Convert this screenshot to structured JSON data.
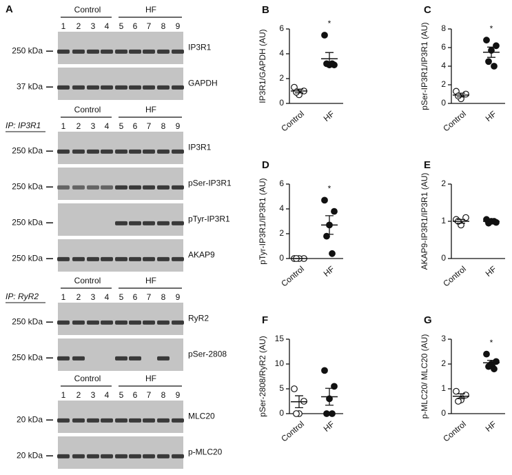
{
  "panel_a": {
    "label": "A",
    "sections": [
      {
        "group_labels": [
          "Control",
          "HF"
        ],
        "lanes": [
          "1",
          "2",
          "3",
          "4",
          "5",
          "6",
          "7",
          "8",
          "9"
        ],
        "blots": [
          {
            "name": "IP3R1",
            "marker": "250 kDa"
          },
          {
            "name": "GAPDH",
            "marker": "37 kDa"
          }
        ]
      },
      {
        "group_labels": [
          "Control",
          "HF"
        ],
        "lanes": [
          "1",
          "2",
          "3",
          "4",
          "5",
          "6",
          "7",
          "8",
          "9"
        ],
        "ip": "IP: IP3R1",
        "blots": [
          {
            "name": "IP3R1",
            "marker": "250 kDa"
          },
          {
            "name": "pSer-IP3R1",
            "marker": "250 kDa"
          },
          {
            "name": "pTyr-IP3R1",
            "marker": "250 kDa"
          },
          {
            "name": "AKAP9",
            "marker": "250 kDa"
          }
        ]
      },
      {
        "group_labels": [
          "Control",
          "HF"
        ],
        "lanes": [
          "1",
          "2",
          "3",
          "4",
          "5",
          "6",
          "7",
          "8",
          "9"
        ],
        "ip": "IP: RyR2",
        "blots": [
          {
            "name": "RyR2",
            "marker": "250 kDa"
          },
          {
            "name": "pSer-2808",
            "marker": "250 kDa"
          }
        ]
      },
      {
        "group_labels": [
          "Control",
          "HF"
        ],
        "lanes": [
          "1",
          "2",
          "3",
          "4",
          "5",
          "6",
          "7",
          "8",
          "9"
        ],
        "blots": [
          {
            "name": "MLC20",
            "marker": "20 kDa"
          },
          {
            "name": "p-MLC20",
            "marker": "20 kDa"
          }
        ]
      }
    ]
  },
  "chart_data": [
    {
      "type": "dot",
      "label": "B",
      "y_label": "IP3R1/GAPDH (AU)",
      "categories": [
        "Control",
        "HF"
      ],
      "ylim": [
        0,
        6
      ],
      "yticks": [
        0,
        2,
        4,
        6
      ],
      "annotation": "*",
      "groups": [
        {
          "marker": "open",
          "values": [
            1.3,
            1.0,
            0.7,
            0.9
          ],
          "mean": 1.0,
          "sem": 0.15
        },
        {
          "marker": "filled",
          "values": [
            5.5,
            3.1,
            3.1,
            3.2,
            3.2
          ],
          "mean": 3.6,
          "sem": 0.5
        }
      ]
    },
    {
      "type": "dot",
      "label": "C",
      "y_label": "pSer-IP3R1/IP3R1 (AU)",
      "categories": [
        "Control",
        "HF"
      ],
      "ylim": [
        0,
        8
      ],
      "yticks": [
        0,
        2,
        4,
        6,
        8
      ],
      "annotation": "*",
      "groups": [
        {
          "marker": "open",
          "values": [
            1.3,
            1.0,
            0.5,
            0.8
          ],
          "mean": 0.9,
          "sem": 0.2
        },
        {
          "marker": "filled",
          "values": [
            6.8,
            6.2,
            5.7,
            4.5,
            4.0
          ],
          "mean": 5.5,
          "sem": 0.55
        }
      ]
    },
    {
      "type": "dot",
      "label": "D",
      "y_label": "pTyr-IP3R1/IP3R1 (AU)",
      "categories": [
        "Control",
        "HF"
      ],
      "ylim": [
        0,
        6
      ],
      "yticks": [
        0,
        2,
        4,
        6
      ],
      "annotation": "*",
      "groups": [
        {
          "marker": "open",
          "values": [
            0,
            0,
            0,
            0
          ],
          "mean": 0,
          "sem": 0
        },
        {
          "marker": "filled",
          "values": [
            4.7,
            3.8,
            2.7,
            1.8,
            0.4
          ],
          "mean": 2.7,
          "sem": 0.75
        }
      ]
    },
    {
      "type": "dot",
      "label": "E",
      "y_label": "AKAP9-IP3R1/IP3R1 (AU)",
      "categories": [
        "Control",
        "HF"
      ],
      "ylim": [
        0,
        2
      ],
      "yticks": [
        0,
        1,
        2
      ],
      "groups": [
        {
          "marker": "open",
          "values": [
            1.05,
            1.1,
            0.9,
            1.0
          ],
          "mean": 1.0,
          "sem": 0.05
        },
        {
          "marker": "filled",
          "values": [
            1.05,
            0.97,
            1.0,
            0.95,
            1.0
          ],
          "mean": 1.0,
          "sem": 0.03
        }
      ]
    },
    {
      "type": "dot",
      "label": "F",
      "y_label": "pSer-2808/RyR2 (AU)",
      "categories": [
        "Control",
        "HF"
      ],
      "ylim": [
        0,
        15
      ],
      "yticks": [
        0,
        5,
        10,
        15
      ],
      "groups": [
        {
          "marker": "open",
          "values": [
            5,
            2.5,
            0,
            0
          ],
          "mean": 2.4,
          "sem": 1.2
        },
        {
          "marker": "filled",
          "values": [
            8.7,
            5.5,
            3,
            0,
            0
          ],
          "mean": 3.4,
          "sem": 1.7
        }
      ]
    },
    {
      "type": "dot",
      "label": "G",
      "y_label": "p-MLC20/ MLC20 (AU)",
      "categories": [
        "Control",
        "HF"
      ],
      "ylim": [
        0,
        3
      ],
      "yticks": [
        0,
        1,
        2,
        3
      ],
      "annotation": "*",
      "groups": [
        {
          "marker": "open",
          "values": [
            0.9,
            0.75,
            0.55,
            0.5
          ],
          "mean": 0.7,
          "sem": 0.1
        },
        {
          "marker": "filled",
          "values": [
            2.4,
            2.1,
            2.0,
            1.9,
            1.8
          ],
          "mean": 2.05,
          "sem": 0.1
        }
      ]
    }
  ]
}
